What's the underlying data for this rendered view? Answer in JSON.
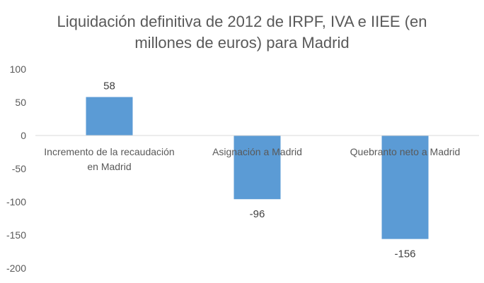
{
  "chart_data": {
    "type": "bar",
    "title_lines": [
      "Liquidación definitiva de 2012 de IRPF, IVA e IIEE (en",
      "millones de euros) para Madrid"
    ],
    "categories": [
      [
        "Incremento de la recaudación",
        "en Madrid"
      ],
      [
        "Asignación a Madrid"
      ],
      [
        "Quebranto neto a Madrid"
      ]
    ],
    "values": [
      58,
      -96,
      -156
    ],
    "data_labels": [
      "58",
      "-96",
      "-156"
    ],
    "yticks": [
      100,
      50,
      0,
      -50,
      -100,
      -150,
      -200
    ],
    "ytick_labels": [
      "100",
      "50",
      "0",
      "-50",
      "-100",
      "-150",
      "-200"
    ],
    "ylim": [
      -200,
      100
    ],
    "grid": false,
    "legend": "none",
    "colors": {
      "bar": "#5b9bd5",
      "axis": "#d9d9d9",
      "text": "#595959"
    }
  }
}
